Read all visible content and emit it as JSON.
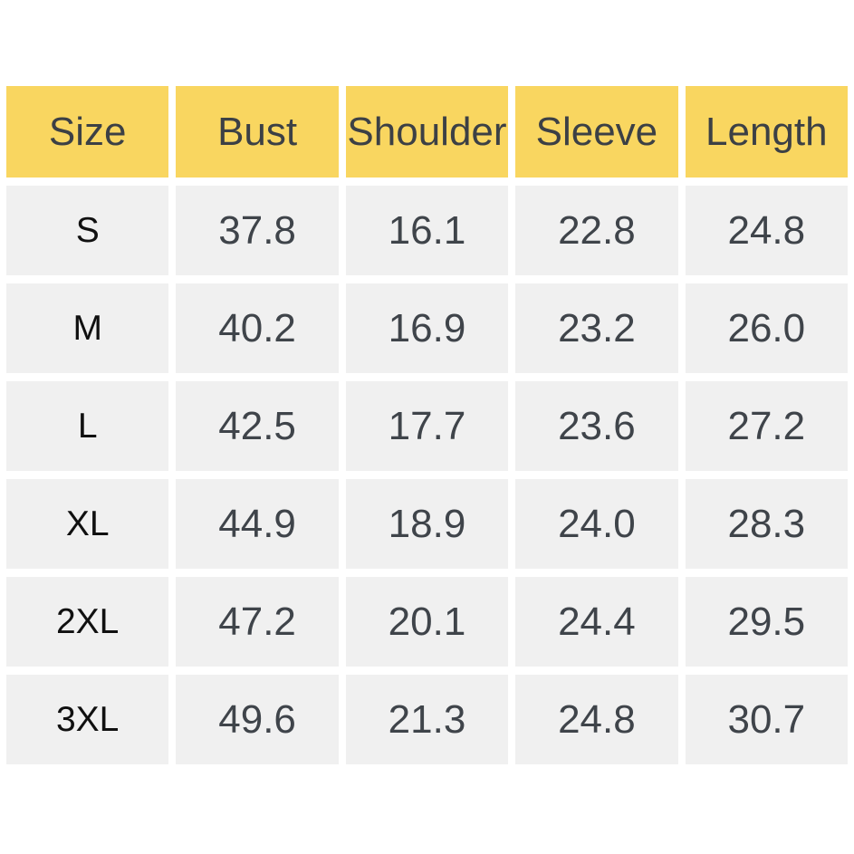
{
  "chart_data": {
    "type": "table",
    "columns": [
      "Size",
      "Bust",
      "Shoulder",
      "Sleeve",
      "Length"
    ],
    "rows": [
      [
        "S",
        "37.8",
        "16.1",
        "22.8",
        "24.8"
      ],
      [
        "M",
        "40.2",
        "16.9",
        "23.2",
        "26.0"
      ],
      [
        "L",
        "42.5",
        "17.7",
        "23.6",
        "27.2"
      ],
      [
        "XL",
        "44.9",
        "18.9",
        "24.0",
        "28.3"
      ],
      [
        "2XL",
        "47.2",
        "20.1",
        "24.4",
        "29.5"
      ],
      [
        "3XL",
        "49.6",
        "21.3",
        "24.8",
        "30.7"
      ]
    ],
    "legend_position": "none",
    "grid": "off"
  },
  "colors": {
    "header_bg": "#F9D660",
    "header_text": "#3C4045",
    "cell_bg": "#F0F0F0",
    "size_text": "#101010",
    "value_text": "#3F444A",
    "page_bg": "#FFFFFF"
  }
}
